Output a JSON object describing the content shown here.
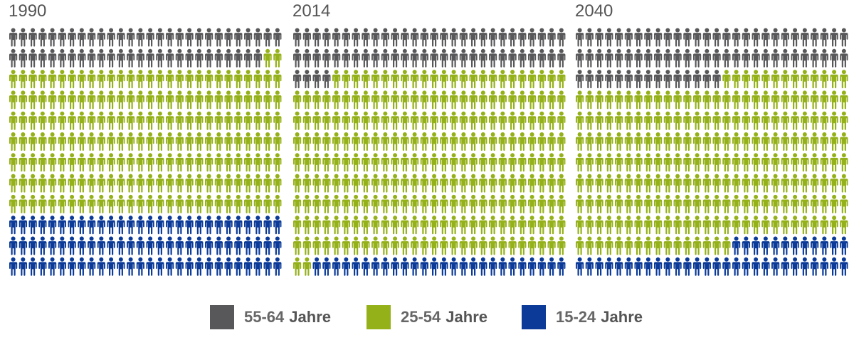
{
  "chart_data": [
    {
      "type": "pictogram",
      "title": "1990",
      "icon": "person-icon",
      "rows": 12,
      "columns": 28,
      "series": [
        {
          "name": "55-64 Jahre",
          "count": 54
        },
        {
          "name": "25-54 Jahre",
          "count": 198
        },
        {
          "name": "15-24 Jahre",
          "count": 84
        }
      ]
    },
    {
      "type": "pictogram",
      "title": "2014",
      "icon": "person-icon",
      "rows": 12,
      "columns": 28,
      "series": [
        {
          "name": "55-64 Jahre",
          "count": 60
        },
        {
          "name": "25-54 Jahre",
          "count": 250
        },
        {
          "name": "15-24 Jahre",
          "count": 26
        }
      ]
    },
    {
      "type": "pictogram",
      "title": "2040",
      "icon": "person-icon",
      "rows": 12,
      "columns": 28,
      "series": [
        {
          "name": "55-64 Jahre",
          "count": 71
        },
        {
          "name": "25-54 Jahre",
          "count": 225
        },
        {
          "name": "15-24 Jahre",
          "count": 40
        }
      ]
    }
  ],
  "legend": [
    {
      "range": "55-64",
      "unit": "Jahre",
      "color": "#58585a"
    },
    {
      "range": "25-54",
      "unit": "Jahre",
      "color": "#95b11a"
    },
    {
      "range": "15-24",
      "unit": "Jahre",
      "color": "#0b3a98"
    }
  ],
  "colors": {
    "55-64 Jahre": "#58585a",
    "25-54 Jahre": "#95b11a",
    "15-24 Jahre": "#0b3a98"
  }
}
